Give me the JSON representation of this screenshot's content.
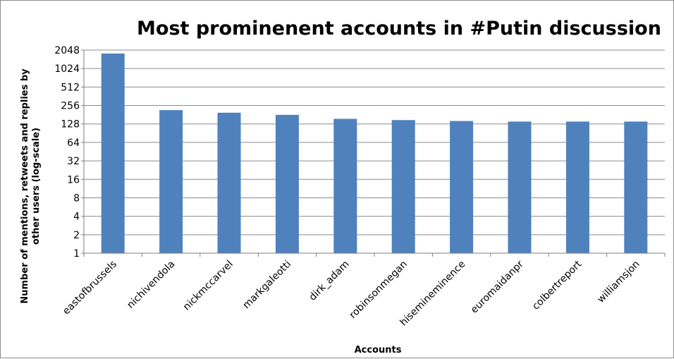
{
  "chart_data": {
    "type": "bar",
    "title": "Most prominenent accounts in #Putin discussion",
    "xlabel": "Accounts",
    "ylabel_lines": [
      "Number of mentions, retweets and replies by",
      "other users (log-scale)"
    ],
    "yscale": "log2",
    "ylim": [
      1,
      2048
    ],
    "yticks": [
      "1",
      "2",
      "4",
      "8",
      "16",
      "32",
      "64",
      "128",
      "256",
      "512",
      "1024",
      "2048"
    ],
    "categories": [
      "eastofbrussels",
      "nichivendola",
      "nickmccarvel",
      "markgaleotti",
      "dirk_adam",
      "robinsonmegan",
      "hisemineminence",
      "euromaidanpr",
      "colbertreport",
      "williamsjon"
    ],
    "values": [
      1800,
      215,
      195,
      180,
      155,
      148,
      143,
      140,
      140,
      140
    ],
    "grid": true,
    "colors": {
      "bar": "#4f81bd",
      "grid": "#8c8c8c",
      "axis": "#7f7f7f"
    }
  }
}
